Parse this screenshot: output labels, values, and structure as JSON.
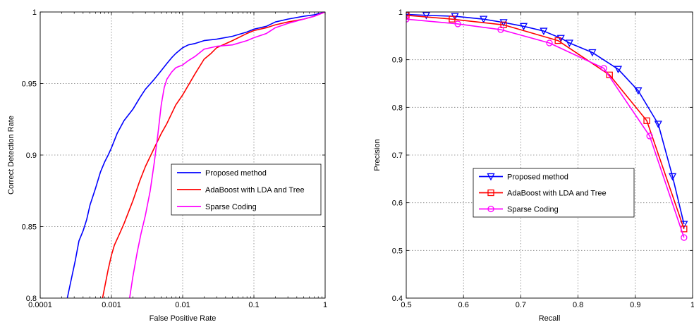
{
  "chart_data": [
    {
      "type": "line",
      "xscale": "log",
      "xlabel": "False Positive Rate",
      "ylabel": "Correct Detection Rate",
      "xlim": [
        0.0001,
        1
      ],
      "ylim": [
        0.8,
        1
      ],
      "xticks": [
        0.0001,
        0.001,
        0.01,
        0.1,
        1
      ],
      "xtick_labels": [
        "0.0001",
        "0.001",
        "0.01",
        "0.1",
        "1"
      ],
      "yticks": [
        0.8,
        0.85,
        0.9,
        0.95,
        1
      ],
      "ytick_labels": [
        "0.8",
        "0.85",
        "0.9",
        "0.95",
        "1"
      ],
      "grid": true,
      "legend_position": "center-right",
      "series": [
        {
          "name": "Proposed method",
          "color": "#0000ff",
          "x": [
            0.00024,
            0.00027,
            0.00031,
            0.00035,
            0.0004,
            0.00045,
            0.0005,
            0.0006,
            0.0007,
            0.0008,
            0.0009,
            0.001,
            0.0012,
            0.0015,
            0.002,
            0.0025,
            0.003,
            0.004,
            0.005,
            0.006,
            0.007,
            0.008,
            0.01,
            0.012,
            0.015,
            0.02,
            0.03,
            0.05,
            0.08,
            0.1,
            0.15,
            0.2,
            0.3,
            0.5,
            0.7,
            1.0
          ],
          "y": [
            0.8,
            0.812,
            0.826,
            0.84,
            0.847,
            0.855,
            0.865,
            0.877,
            0.888,
            0.895,
            0.9,
            0.905,
            0.915,
            0.924,
            0.932,
            0.94,
            0.946,
            0.953,
            0.959,
            0.964,
            0.968,
            0.971,
            0.975,
            0.977,
            0.978,
            0.98,
            0.981,
            0.983,
            0.986,
            0.988,
            0.99,
            0.993,
            0.995,
            0.997,
            0.998,
            1.0
          ]
        },
        {
          "name": "AdaBoost with LDA and Tree",
          "color": "#ff0000",
          "x": [
            0.00075,
            0.0009,
            0.001,
            0.0011,
            0.0013,
            0.0015,
            0.002,
            0.0025,
            0.003,
            0.004,
            0.005,
            0.006,
            0.008,
            0.01,
            0.015,
            0.02,
            0.025,
            0.03,
            0.05,
            0.08,
            0.1,
            0.15,
            0.2,
            0.3,
            0.5,
            0.7,
            1.0
          ],
          "y": [
            0.8,
            0.82,
            0.83,
            0.837,
            0.845,
            0.852,
            0.868,
            0.882,
            0.892,
            0.905,
            0.915,
            0.922,
            0.935,
            0.942,
            0.957,
            0.967,
            0.971,
            0.975,
            0.98,
            0.985,
            0.987,
            0.989,
            0.991,
            0.993,
            0.995,
            0.997,
            1.0
          ]
        },
        {
          "name": "Sparse Coding",
          "color": "#ff00ff",
          "x": [
            0.0018,
            0.002,
            0.0023,
            0.0026,
            0.003,
            0.0035,
            0.004,
            0.0045,
            0.005,
            0.0055,
            0.006,
            0.007,
            0.008,
            0.01,
            0.012,
            0.015,
            0.02,
            0.03,
            0.05,
            0.08,
            0.1,
            0.15,
            0.2,
            0.3,
            0.5,
            0.7,
            1.0
          ],
          "y": [
            0.8,
            0.815,
            0.832,
            0.845,
            0.858,
            0.875,
            0.895,
            0.915,
            0.935,
            0.947,
            0.953,
            0.958,
            0.961,
            0.963,
            0.966,
            0.969,
            0.974,
            0.976,
            0.977,
            0.98,
            0.982,
            0.985,
            0.989,
            0.992,
            0.995,
            0.997,
            1.0
          ]
        }
      ]
    },
    {
      "type": "line",
      "xlabel": "Recall",
      "ylabel": "Precision",
      "xlim": [
        0.5,
        1
      ],
      "ylim": [
        0.4,
        1
      ],
      "xticks": [
        0.5,
        0.6,
        0.7,
        0.8,
        0.9,
        1
      ],
      "xtick_labels": [
        "0.5",
        "0.6",
        "0.7",
        "0.8",
        "0.9",
        "1"
      ],
      "yticks": [
        0.4,
        0.5,
        0.6,
        0.7,
        0.8,
        0.9,
        1
      ],
      "ytick_labels": [
        "0.4",
        "0.5",
        "0.6",
        "0.7",
        "0.8",
        "0.9",
        "1"
      ],
      "grid": true,
      "legend_position": "center-left",
      "series": [
        {
          "name": "Proposed method",
          "color": "#0000ff",
          "marker": "triangle-down",
          "x": [
            0.5,
            0.535,
            0.585,
            0.635,
            0.67,
            0.705,
            0.74,
            0.77,
            0.785,
            0.825,
            0.87,
            0.905,
            0.94,
            0.965,
            0.985
          ],
          "y": [
            0.995,
            0.993,
            0.991,
            0.985,
            0.978,
            0.97,
            0.96,
            0.945,
            0.935,
            0.915,
            0.88,
            0.835,
            0.765,
            0.655,
            0.555
          ]
        },
        {
          "name": "AdaBoost with LDA and Tree",
          "color": "#ff0000",
          "marker": "square",
          "x": [
            0.5,
            0.58,
            0.67,
            0.765,
            0.855,
            0.92,
            0.985
          ],
          "y": [
            0.993,
            0.985,
            0.973,
            0.94,
            0.868,
            0.772,
            0.545
          ]
        },
        {
          "name": "Sparse Coding",
          "color": "#ff00ff",
          "marker": "circle",
          "x": [
            0.5,
            0.59,
            0.665,
            0.75,
            0.845,
            0.925,
            0.985
          ],
          "y": [
            0.985,
            0.975,
            0.963,
            0.935,
            0.882,
            0.74,
            0.527
          ]
        }
      ]
    }
  ]
}
